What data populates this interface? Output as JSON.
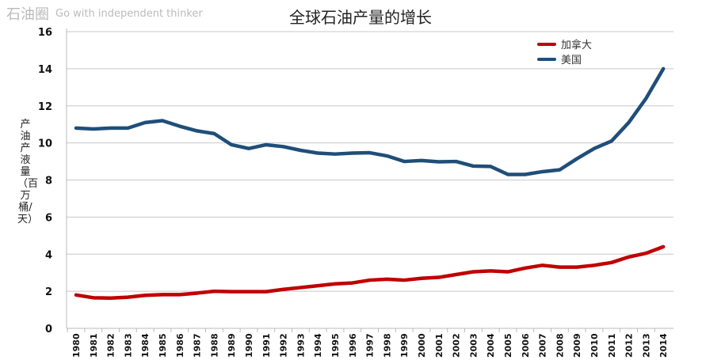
{
  "chart_data": {
    "type": "line",
    "title": "全球石油产量的增长",
    "xlabel": "",
    "ylabel": "产油产液量（百万桶/天）",
    "ylim": [
      0,
      16
    ],
    "yticks": [
      0,
      2,
      4,
      6,
      8,
      10,
      12,
      14,
      16
    ],
    "grid": true,
    "legend_position": "top-right",
    "x": [
      "1980",
      "1981",
      "1982",
      "1983",
      "1984",
      "1985",
      "1986",
      "1987",
      "1988",
      "1989",
      "1990",
      "1991",
      "1992",
      "1993",
      "1994",
      "1995",
      "1996",
      "1997",
      "1998",
      "1999",
      "2000",
      "2001",
      "2002",
      "2003",
      "2004",
      "2005",
      "2006",
      "2007",
      "2008",
      "2009",
      "2010",
      "2011",
      "2012",
      "2013",
      "2014"
    ],
    "series": [
      {
        "name": "加拿大",
        "color": "#c00000",
        "values": [
          1.8,
          1.65,
          1.63,
          1.68,
          1.78,
          1.82,
          1.82,
          1.9,
          2.0,
          1.98,
          1.98,
          1.98,
          2.1,
          2.2,
          2.3,
          2.4,
          2.45,
          2.6,
          2.65,
          2.6,
          2.7,
          2.75,
          2.9,
          3.05,
          3.1,
          3.05,
          3.25,
          3.4,
          3.3,
          3.3,
          3.4,
          3.55,
          3.85,
          4.05,
          4.4
        ]
      },
      {
        "name": "美国",
        "color": "#1f4e79",
        "values": [
          10.8,
          10.75,
          10.8,
          10.8,
          11.1,
          11.2,
          10.9,
          10.65,
          10.5,
          9.9,
          9.7,
          9.9,
          9.8,
          9.6,
          9.45,
          9.4,
          9.45,
          9.47,
          9.3,
          9.0,
          9.05,
          8.98,
          9.0,
          8.75,
          8.73,
          8.3,
          8.3,
          8.45,
          8.55,
          9.15,
          9.7,
          10.1,
          11.1,
          12.4,
          14.0
        ]
      }
    ]
  },
  "watermark": {
    "name": "石油圈",
    "slogan": "Go with independent thinker"
  }
}
